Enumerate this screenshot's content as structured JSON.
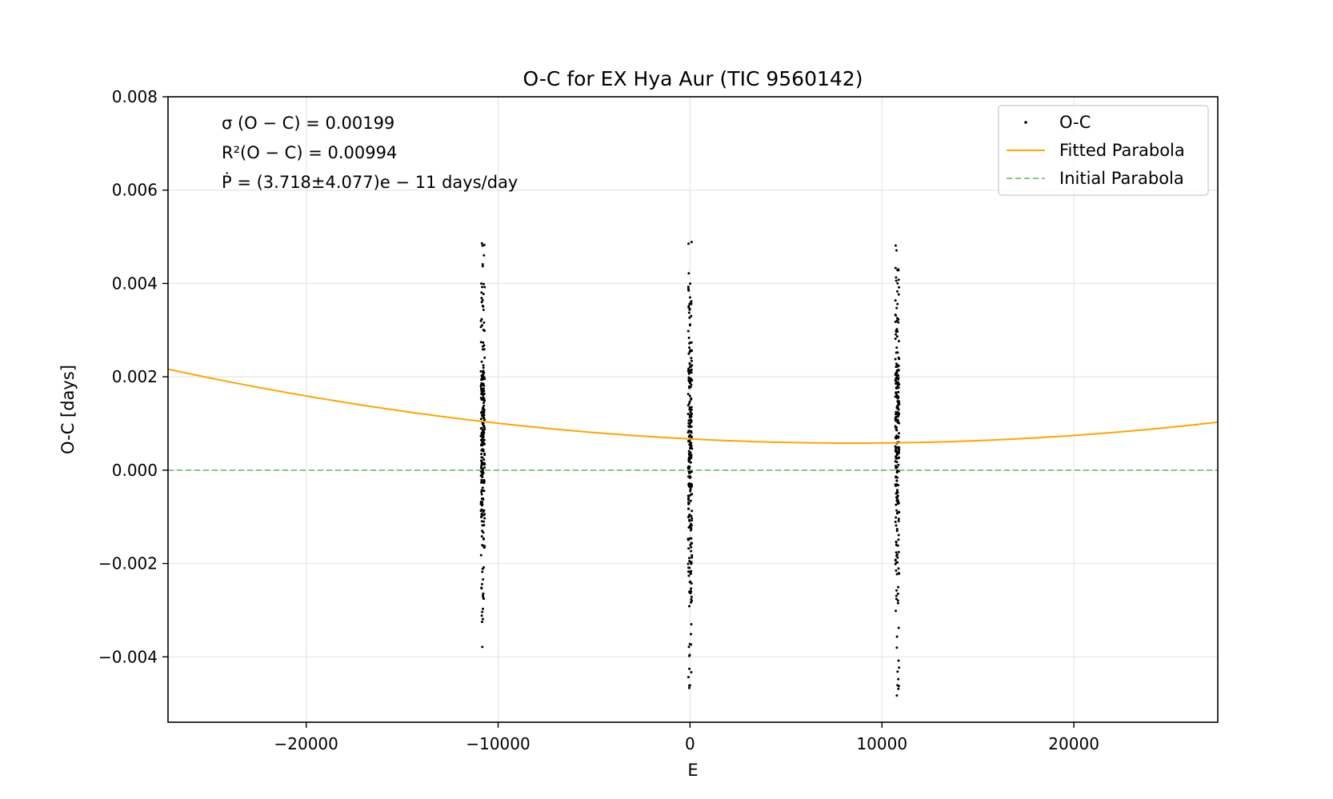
{
  "chart_data": {
    "type": "scatter",
    "title": "O-C for EX Hya Aur (TIC 9560142)",
    "xlabel": "E",
    "ylabel": "O-C [days]",
    "xlim": [
      -27200,
      27500
    ],
    "ylim": [
      -0.0054,
      0.008
    ],
    "xticks": [
      -20000,
      -10000,
      0,
      10000,
      20000
    ],
    "xtick_labels": [
      "−20000",
      "−10000",
      "0",
      "10000",
      "20000"
    ],
    "yticks": [
      -0.004,
      -0.002,
      0.0,
      0.002,
      0.004,
      0.006,
      0.008
    ],
    "ytick_labels": [
      "−0.004",
      "−0.002",
      "0.000",
      "0.002",
      "0.004",
      "0.006",
      "0.008"
    ],
    "grid": true,
    "legend_position": "top-right",
    "annotations": [
      "σ (O − C) = 0.00199",
      "R²(O − C) = 0.00994",
      "Ṗ = (3.718±4.077)e − 11 days/day"
    ],
    "series": [
      {
        "name": "O-C",
        "kind": "scatter",
        "color": "#000000",
        "clusters": [
          {
            "x_center": -10800,
            "x_spread": 200,
            "y_min": -0.0038,
            "y_max": 0.0049,
            "y_center": 0.0008,
            "count": 250
          },
          {
            "x_center": 0,
            "x_spread": 200,
            "y_min": -0.0049,
            "y_max": 0.0049,
            "y_center": 0.0005,
            "count": 250
          },
          {
            "x_center": 10800,
            "x_spread": 200,
            "y_min": -0.0049,
            "y_max": 0.0049,
            "y_center": 0.0008,
            "count": 250
          }
        ]
      },
      {
        "name": "Fitted Parabola",
        "kind": "line",
        "color": "#ffa500",
        "style": "solid",
        "vertex_x": 8500,
        "vertex_y": 0.00058,
        "curvature": 1.243e-12
      },
      {
        "name": "Initial Parabola",
        "kind": "line",
        "color": "#5cb85c",
        "style": "dashed",
        "y": 0.0
      }
    ]
  }
}
